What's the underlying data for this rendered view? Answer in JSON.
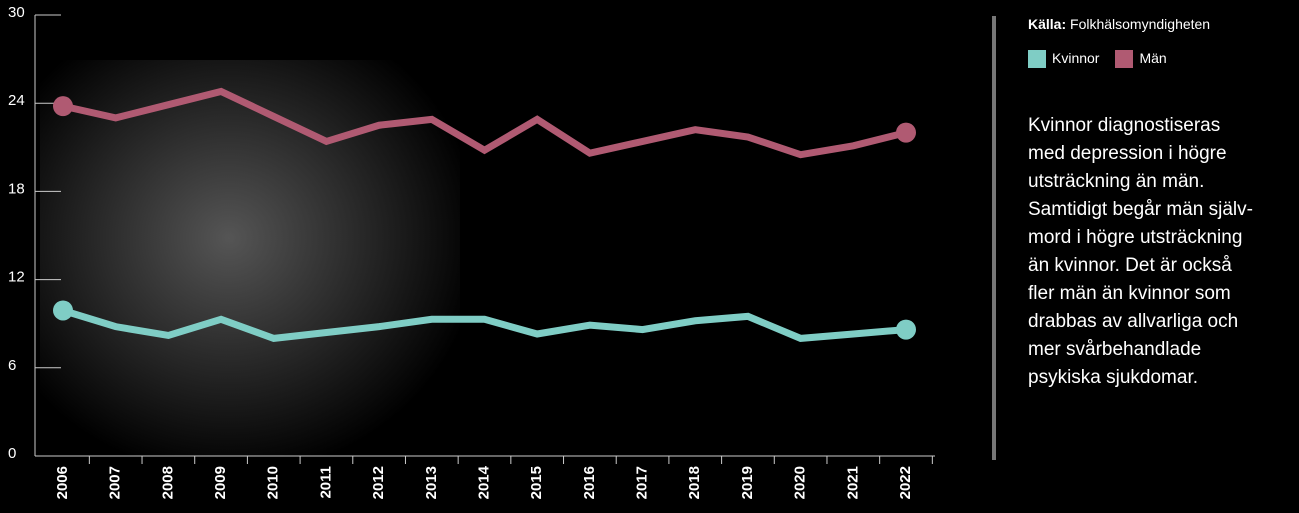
{
  "chart_data": {
    "type": "line",
    "x": [
      "2006",
      "2007",
      "2008",
      "2009",
      "2010",
      "2011",
      "2012",
      "2013",
      "2014",
      "2015",
      "2016",
      "2017",
      "2018",
      "2019",
      "2020",
      "2021",
      "2022"
    ],
    "series": [
      {
        "name": "Kvinnor",
        "color": "#7fcdc5",
        "values": [
          9.9,
          8.8,
          8.2,
          9.3,
          8.0,
          8.4,
          8.8,
          9.3,
          9.3,
          8.3,
          8.9,
          8.6,
          9.2,
          9.5,
          8.0,
          8.3,
          8.6
        ]
      },
      {
        "name": "Män",
        "color": "#b05a72",
        "values": [
          23.8,
          23.0,
          23.9,
          24.8,
          23.1,
          21.4,
          22.5,
          22.9,
          20.8,
          22.9,
          20.6,
          21.4,
          22.2,
          21.7,
          20.5,
          21.1,
          22.0
        ]
      }
    ],
    "ylim": [
      0,
      30
    ],
    "yticks": [
      0,
      6,
      12,
      18,
      24,
      30
    ],
    "source_label": "Källa:",
    "source": "Folkhälsomyndigheten",
    "paragraph_lines": [
      "Kvinnor diagnostiseras",
      "med depression i högre",
      "utsträckning än män.",
      "Samtidigt begår män själv-",
      "mord i högre utsträckning",
      "än kvinnor. Det är också",
      "fler män än kvinnor som",
      "drabbas av allvarliga och",
      "mer svårbehandlade",
      "psykiska sjukdomar."
    ]
  }
}
